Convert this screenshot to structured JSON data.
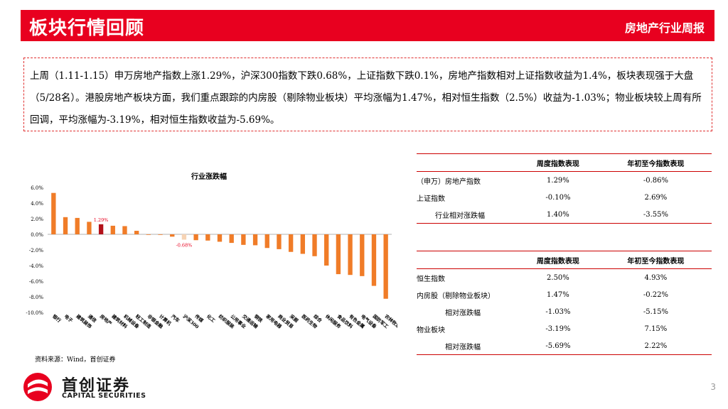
{
  "header": {
    "title": "板块行情回顾",
    "report_name": "房地产行业周报",
    "bg_color": "#e8001f"
  },
  "summary": {
    "text": "上周（1.11-1.15）申万房地产指数上涨1.29%，沪深300指数下跌0.68%，上证指数下跌0.1%，房地产指数相对上证指数收益为1.4%，板块表现强于大盘（5/28名）。港股房地产板块方面，我们重点跟踪的内房股（剔除物业板块）平均涨幅为1.47%，相对恒生指数（2.5%）收益为-1.03%；物业板块较上周有所回调，平均涨幅为-3.19%，相对恒生指数收益为-5.69%。"
  },
  "chart_data": {
    "type": "bar",
    "title": "行业涨跌幅",
    "categories": [
      "银行",
      "电子",
      "建筑装饰",
      "通信",
      "房地产",
      "建筑材料",
      "机械设备",
      "轻工制造",
      "非银金融",
      "计算机",
      "汽车",
      "沪深300",
      "传媒",
      "化工",
      "纺织服装",
      "公用事业",
      "交通运输",
      "钢铁",
      "家用电器",
      "商业贸易",
      "采掘",
      "医药生物",
      "综合",
      "休闲服务",
      "食品饮料",
      "有色金属",
      "电气设备",
      "国防军工",
      "农林牧渔"
    ],
    "values": [
      5.3,
      2.2,
      2.1,
      1.6,
      1.29,
      1.1,
      1.05,
      0.45,
      0.0,
      -0.05,
      -0.3,
      -0.68,
      -0.75,
      -0.8,
      -0.95,
      -1.1,
      -1.35,
      -1.4,
      -1.75,
      -1.9,
      -2.25,
      -2.5,
      -2.8,
      -4.0,
      -5.1,
      -5.2,
      -5.35,
      -6.6,
      -8.25
    ],
    "highlight": {
      "房地产": "1.29%",
      "沪深300": "-0.68%"
    },
    "ylim": [
      -10,
      6
    ],
    "yticks": [
      "6.0%",
      "4.0%",
      "2.0%",
      "0.0%",
      "-2.0%",
      "-4.0%",
      "-6.0%",
      "-8.0%",
      "-10.0%"
    ],
    "colors": {
      "default": "#f07c28",
      "highlight": "#b3121a",
      "hs300": "#f6d3b4",
      "label": "#e8001f"
    }
  },
  "table1": {
    "headers": [
      "",
      "周度指数表现",
      "年初至今指数表现"
    ],
    "rows": [
      [
        "（申万）房地产指数",
        "1.29%",
        "-0.86%"
      ],
      [
        "上证指数",
        "-0.10%",
        "2.69%"
      ],
      [
        "行业相对涨跌幅",
        "1.40%",
        "-3.55%"
      ]
    ]
  },
  "table2": {
    "headers": [
      "",
      "周度指数表现",
      "年初至今指数表现"
    ],
    "rows": [
      [
        "恒生指数",
        "2.50%",
        "4.93%"
      ],
      [
        "内房股（剔除物业板块）",
        "1.47%",
        "-0.22%"
      ],
      [
        "相对涨跌幅",
        "-1.03%",
        "-5.15%"
      ],
      [
        "物业板块",
        "-3.19%",
        "7.15%"
      ],
      [
        "相对涨跌幅",
        "-5.69%",
        "2.22%"
      ]
    ]
  },
  "source": "资料来源：Wind，首创证券",
  "logo": {
    "cn": "首创证券",
    "en": "CAPITAL SECURITIES"
  },
  "page_number": "3"
}
